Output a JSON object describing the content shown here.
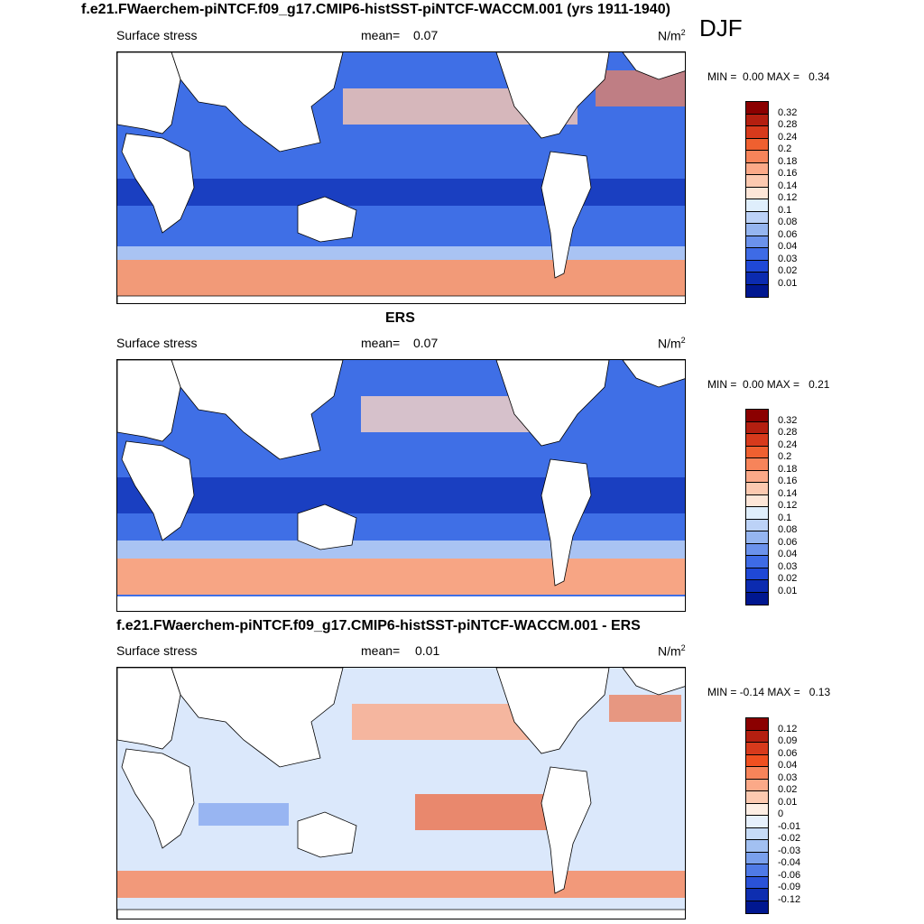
{
  "figure_title": "f.e21.FWaerchem-piNTCF.f09_g17.CMIP6-histSST-piNTCF-WACCM.001 (yrs 1911-1940)",
  "season": "DJF",
  "panels": [
    {
      "id": "model",
      "title": "",
      "variable": "Surface stress",
      "mean_label": "mean=",
      "mean_value": "0.07",
      "units": "N/m",
      "units_exp": "2",
      "min_label": "MIN =",
      "min_value": "0.00",
      "max_label": "MAX =",
      "max_value": "0.34",
      "levels": [
        "0.32",
        "0.28",
        "0.24",
        "0.2",
        "0.18",
        "0.16",
        "0.14",
        "0.12",
        "0.1",
        "0.08",
        "0.06",
        "0.04",
        "0.03",
        "0.02",
        "0.01"
      ],
      "colors": [
        "#8b0000",
        "#b41f10",
        "#d73a1c",
        "#ef6030",
        "#f7845a",
        "#fba988",
        "#fcc9b0",
        "#fde6d8",
        "#dfeefc",
        "#bcd2f7",
        "#95b5f0",
        "#6b92ec",
        "#3e6be6",
        "#1f48d6",
        "#0b2bb0",
        "#001790"
      ]
    },
    {
      "id": "obs",
      "title": "ERS",
      "variable": "Surface stress",
      "mean_label": "mean=",
      "mean_value": "0.07",
      "units": "N/m",
      "units_exp": "2",
      "min_label": "MIN =",
      "min_value": "0.00",
      "max_label": "MAX =",
      "max_value": "0.21",
      "levels": [
        "0.32",
        "0.28",
        "0.24",
        "0.2",
        "0.18",
        "0.16",
        "0.14",
        "0.12",
        "0.1",
        "0.08",
        "0.06",
        "0.04",
        "0.03",
        "0.02",
        "0.01"
      ],
      "colors": [
        "#8b0000",
        "#b41f10",
        "#d73a1c",
        "#ef6030",
        "#f7845a",
        "#fba988",
        "#fcc9b0",
        "#fde6d8",
        "#dfeefc",
        "#bcd2f7",
        "#95b5f0",
        "#6b92ec",
        "#3e6be6",
        "#1f48d6",
        "#0b2bb0",
        "#001790"
      ]
    },
    {
      "id": "diff",
      "title": "f.e21.FWaerchem-piNTCF.f09_g17.CMIP6-histSST-piNTCF-WACCM.001 - ERS",
      "variable": "Surface stress",
      "mean_label": "mean=",
      "mean_value": "0.01",
      "units": "N/m",
      "units_exp": "2",
      "min_label": "MIN =",
      "min_value": "-0.14",
      "max_label": "MAX =",
      "max_value": "0.13",
      "levels": [
        "0.12",
        "0.09",
        "0.06",
        "0.04",
        "0.03",
        "0.02",
        "0.01",
        "0",
        "-0.01",
        "-0.02",
        "-0.03",
        "-0.04",
        "-0.06",
        "-0.09",
        "-0.12"
      ],
      "colors": [
        "#8b0000",
        "#b41f10",
        "#d73a1c",
        "#f05020",
        "#f7845a",
        "#fba988",
        "#fcc9b0",
        "#fdeee4",
        "#e6f0fc",
        "#c6dbf7",
        "#a2c0f1",
        "#7aa0ec",
        "#4f7ae6",
        "#2a52d8",
        "#0e2eb0",
        "#001790"
      ]
    }
  ]
}
